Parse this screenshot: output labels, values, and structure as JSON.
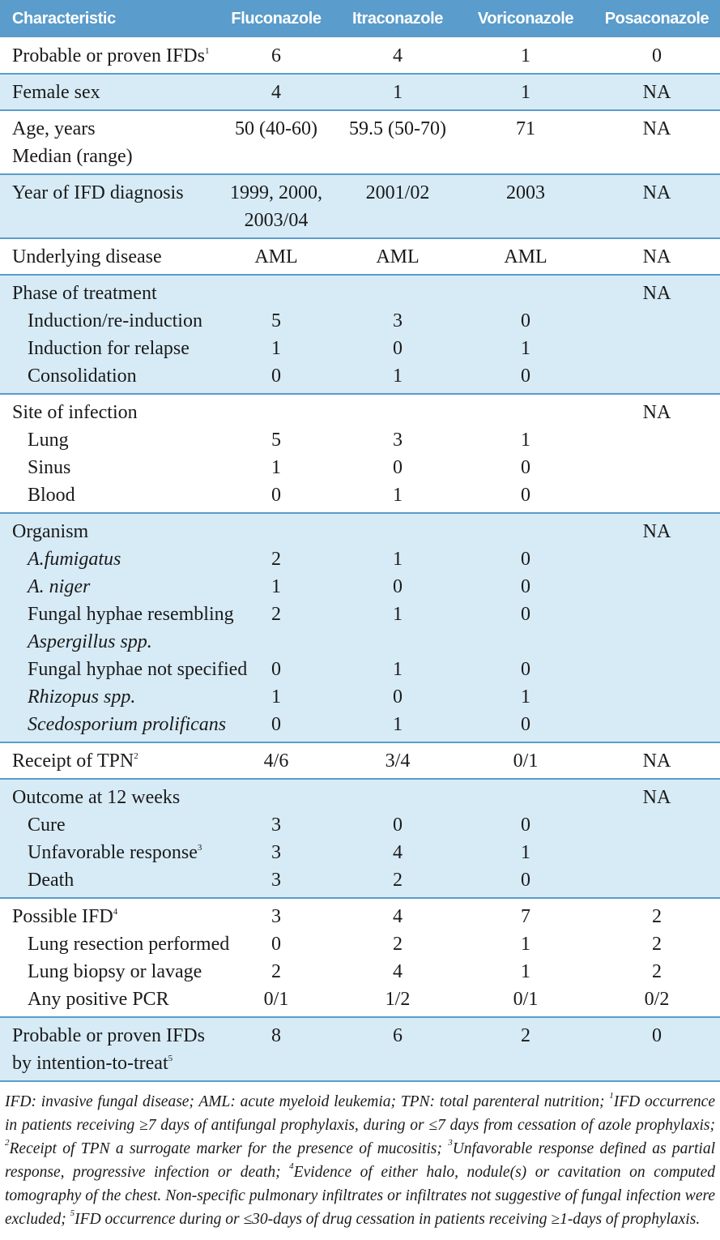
{
  "table": {
    "header": [
      "Characteristic",
      "Fluconazole",
      "Itraconazole",
      "Voriconazole",
      "Posaconazole"
    ],
    "groups": [
      {
        "shaded": false,
        "rows": [
          {
            "label": [
              "Probable or proven IFDs"
            ],
            "sup": "1",
            "values": [
              6,
              4,
              1,
              0
            ]
          }
        ]
      },
      {
        "shaded": true,
        "rows": [
          {
            "label": [
              "Female sex"
            ],
            "values": [
              4,
              1,
              1,
              "NA"
            ]
          }
        ]
      },
      {
        "shaded": false,
        "rows": [
          {
            "label": [
              "Age, years",
              "Median (range)"
            ],
            "values": [
              "50 (40-60)",
              "59.5 (50-70)",
              71,
              "NA"
            ]
          }
        ]
      },
      {
        "shaded": true,
        "rows": [
          {
            "label": [
              "Year of IFD diagnosis"
            ],
            "values": [
              [
                "1999, 2000,",
                "2003/04"
              ],
              "2001/02",
              2003,
              "NA"
            ]
          }
        ]
      },
      {
        "shaded": false,
        "rows": [
          {
            "label": [
              "Underlying disease"
            ],
            "values": [
              "AML",
              "AML",
              "AML",
              "NA"
            ]
          }
        ]
      },
      {
        "shaded": true,
        "rows": [
          {
            "label": [
              "Phase of treatment"
            ],
            "values": [
              null,
              null,
              null,
              "NA"
            ]
          },
          {
            "label": [
              "Induction/re-induction"
            ],
            "indent": true,
            "values": [
              5,
              3,
              0,
              null
            ]
          },
          {
            "label": [
              "Induction for relapse"
            ],
            "indent": true,
            "values": [
              1,
              0,
              1,
              null
            ]
          },
          {
            "label": [
              "Consolidation"
            ],
            "indent": true,
            "values": [
              0,
              1,
              0,
              null
            ]
          }
        ]
      },
      {
        "shaded": false,
        "rows": [
          {
            "label": [
              "Site of infection"
            ],
            "values": [
              null,
              null,
              null,
              "NA"
            ]
          },
          {
            "label": [
              "Lung"
            ],
            "indent": true,
            "values": [
              5,
              3,
              1,
              null
            ]
          },
          {
            "label": [
              "Sinus"
            ],
            "indent": true,
            "values": [
              1,
              0,
              0,
              null
            ]
          },
          {
            "label": [
              "Blood"
            ],
            "indent": true,
            "values": [
              0,
              1,
              0,
              null
            ]
          }
        ]
      },
      {
        "shaded": true,
        "rows": [
          {
            "label": [
              "Organism"
            ],
            "values": [
              null,
              null,
              null,
              "NA"
            ]
          },
          {
            "label": [
              "A.fumigatus"
            ],
            "indent": true,
            "italic": [
              true
            ],
            "values": [
              2,
              1,
              0,
              null
            ]
          },
          {
            "label": [
              "A. niger"
            ],
            "indent": true,
            "italic": [
              true
            ],
            "values": [
              1,
              0,
              0,
              null
            ]
          },
          {
            "label": [
              "Fungal hyphae resembling",
              "Aspergillus spp."
            ],
            "indent": true,
            "italic": [
              false,
              true
            ],
            "values": [
              2,
              1,
              0,
              null
            ]
          },
          {
            "label": [
              "Fungal hyphae not specified"
            ],
            "indent": true,
            "values": [
              0,
              1,
              0,
              null
            ]
          },
          {
            "label": [
              "Rhizopus spp."
            ],
            "indent": true,
            "italic": [
              true
            ],
            "values": [
              1,
              0,
              1,
              null
            ]
          },
          {
            "label": [
              "Scedosporium prolificans"
            ],
            "indent": true,
            "italic": [
              true
            ],
            "values": [
              0,
              1,
              0,
              null
            ]
          }
        ]
      },
      {
        "shaded": false,
        "rows": [
          {
            "label": [
              "Receipt of TPN"
            ],
            "sup": "2",
            "values": [
              "4/6",
              "3/4",
              "0/1",
              "NA"
            ]
          }
        ]
      },
      {
        "shaded": true,
        "rows": [
          {
            "label": [
              "Outcome at 12 weeks"
            ],
            "values": [
              null,
              null,
              null,
              "NA"
            ]
          },
          {
            "label": [
              "Cure"
            ],
            "indent": true,
            "values": [
              3,
              0,
              0,
              null
            ]
          },
          {
            "label": [
              "Unfavorable response"
            ],
            "sup": "3",
            "indent": true,
            "values": [
              3,
              4,
              1,
              null
            ]
          },
          {
            "label": [
              "Death"
            ],
            "indent": true,
            "values": [
              3,
              2,
              0,
              null
            ]
          }
        ]
      },
      {
        "shaded": false,
        "rows": [
          {
            "label": [
              "Possible IFD"
            ],
            "sup": "4",
            "values": [
              3,
              4,
              7,
              2
            ]
          },
          {
            "label": [
              "Lung resection performed"
            ],
            "indent": true,
            "values": [
              0,
              2,
              1,
              2
            ]
          },
          {
            "label": [
              "Lung biopsy or lavage"
            ],
            "indent": true,
            "values": [
              2,
              4,
              1,
              2
            ]
          },
          {
            "label": [
              "Any positive PCR"
            ],
            "indent": true,
            "values": [
              "0/1",
              "1/2",
              "0/1",
              "0/2"
            ]
          }
        ]
      },
      {
        "shaded": true,
        "rows": [
          {
            "label": [
              "Probable or proven IFDs",
              "by intention-to-treat"
            ],
            "sup": "5",
            "values": [
              8,
              6,
              2,
              0
            ]
          }
        ]
      }
    ]
  },
  "footnote": [
    "IFD: invasive fungal disease; AML: acute myeloid leukemia; TPN: total parenteral nutrition; ",
    "1",
    "IFD occurrence in patients receiving ≥7 days of antifungal prophylaxis, during or ≤7 days from cessation of azole prophylaxis; ",
    "2",
    "Receipt of TPN a surrogate marker for the presence of mucositis; ",
    "3",
    "Unfavorable response defined as partial response, progressive infection or death; ",
    "4",
    "Evidence of either halo, nodule(s) or cavitation on computed tomography of the chest. Non-specific pulmonary infiltrates or infiltrates not suggestive of fungal infection were excluded; ",
    "5",
    "IFD occurrence during or ≤30-days of drug cessation in patients receiving ≥1-days of prophylaxis."
  ]
}
